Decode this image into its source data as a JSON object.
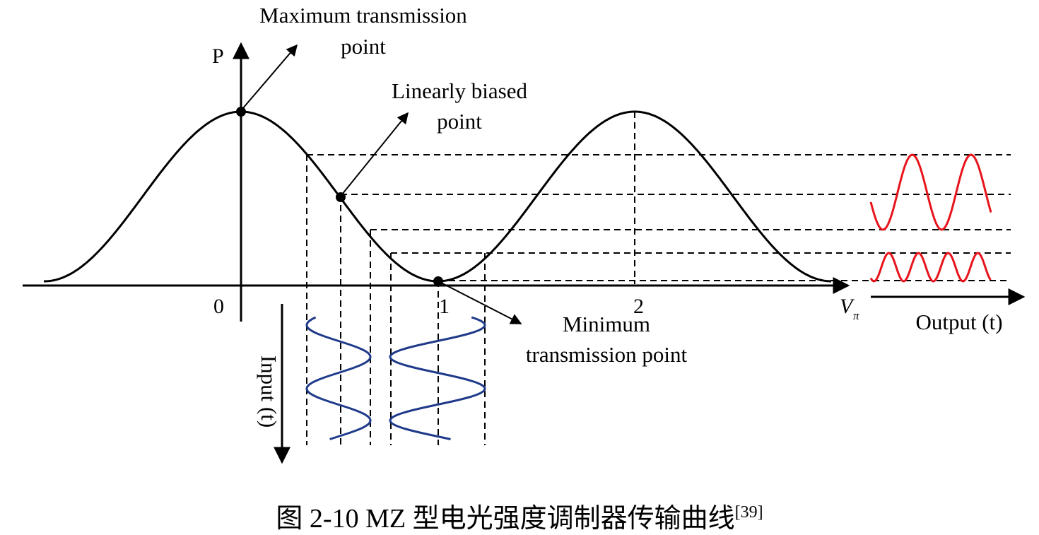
{
  "labels": {
    "axis_y": "P",
    "axis_x": "V",
    "axis_x_sub": "π",
    "tick_0": "0",
    "tick_1": "1",
    "tick_2": "2",
    "max_line1": "Maximum transmission",
    "max_line2": "point",
    "lin_line1": "Linearly biased",
    "lin_line2": "point",
    "min_line1": "Minimum",
    "min_line2": "transmission point",
    "output": "Output (t)",
    "input": "Input (t)"
  },
  "caption": {
    "text": "图 2-10 MZ 型电光强度调制器传输曲线",
    "ref": "[39]"
  },
  "colors": {
    "curve": "#000000",
    "output_wave": "#e8141c",
    "input_wave": "#1f3a8a"
  }
}
